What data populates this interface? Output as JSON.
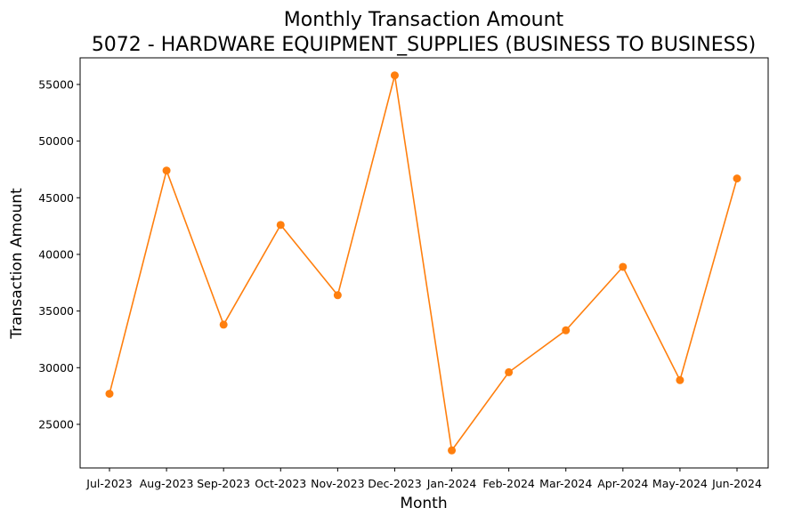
{
  "chart_data": {
    "type": "line",
    "title": "Monthly Transaction Amount",
    "subtitle": "5072 - HARDWARE EQUIPMENT_SUPPLIES (BUSINESS TO BUSINESS)",
    "xlabel": "Month",
    "ylabel": "Transaction Amount",
    "categories": [
      "Jul-2023",
      "Aug-2023",
      "Sep-2023",
      "Oct-2023",
      "Nov-2023",
      "Dec-2023",
      "Jan-2024",
      "Feb-2024",
      "Mar-2024",
      "Apr-2024",
      "May-2024",
      "Jun-2024"
    ],
    "series": [
      {
        "values": [
          27700,
          47400,
          33800,
          42600,
          36400,
          55800,
          22700,
          29600,
          33300,
          38900,
          28900,
          46700
        ],
        "color": "#ff7f0e"
      }
    ],
    "yticks": [
      25000,
      30000,
      35000,
      40000,
      45000,
      50000,
      55000
    ],
    "ylim": [
      21150,
      57350
    ],
    "grid": false,
    "legend": "none"
  }
}
